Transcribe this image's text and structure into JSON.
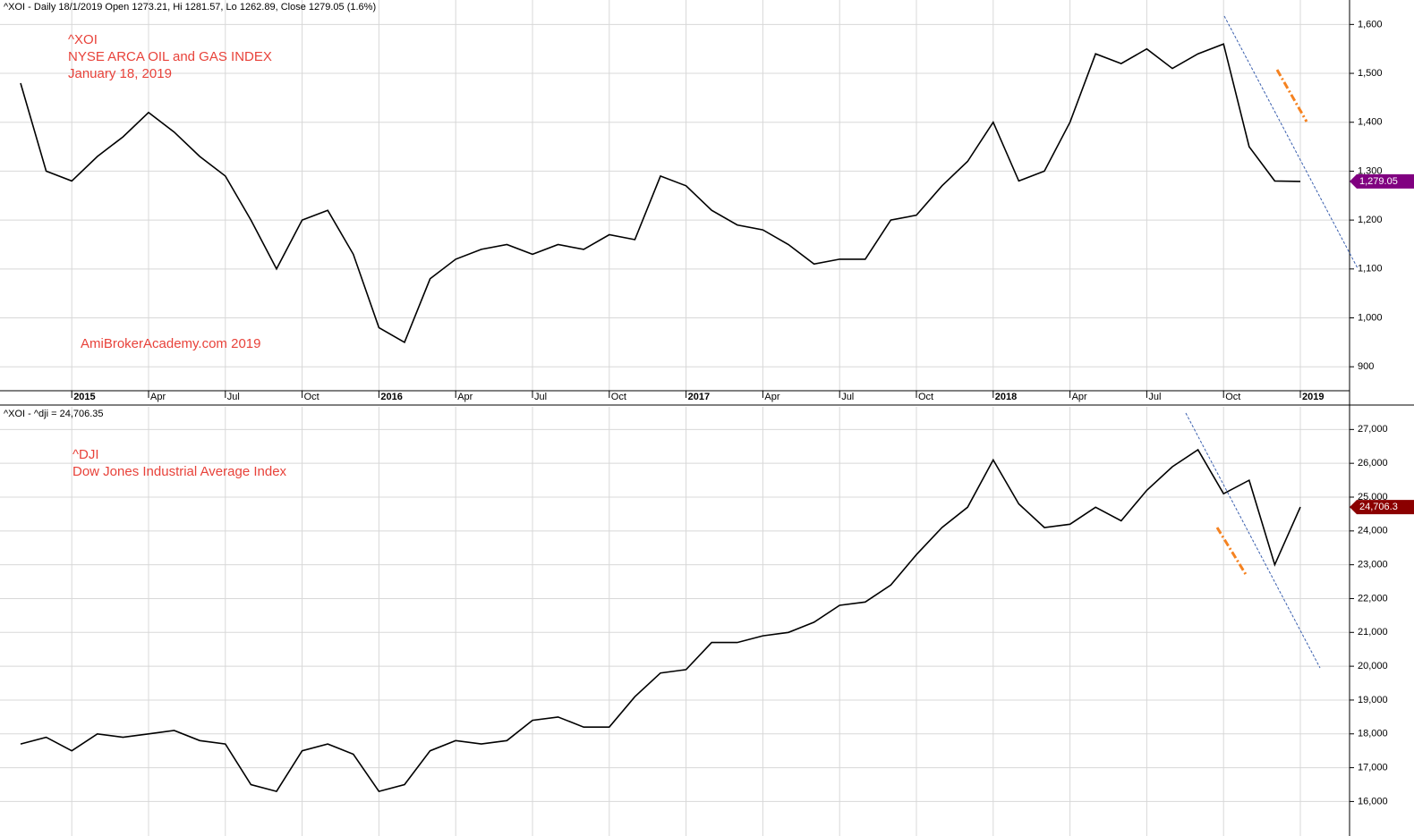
{
  "chart_data": [
    {
      "type": "line",
      "header": "^XOI - Daily 18/1/2019 Open 1273.21, Hi 1281.57, Lo 1262.89, Close 1279.05 (1.6%)",
      "title": "^XOI",
      "subtitle": "NYSE ARCA OIL and GAS INDEX",
      "date": "January 18, 2019",
      "watermark": "AmiBrokerAcademy.com  2019",
      "categories": [
        null,
        null,
        "2015",
        null,
        null,
        "Apr",
        null,
        null,
        "Jul",
        null,
        null,
        "Oct",
        null,
        null,
        "2016",
        null,
        null,
        "Apr",
        null,
        null,
        "Jul",
        null,
        null,
        "Oct",
        null,
        null,
        "2017",
        null,
        null,
        "Apr",
        null,
        null,
        "Jul",
        null,
        null,
        "Oct",
        null,
        null,
        "2018",
        null,
        null,
        "Apr",
        null,
        null,
        "Jul",
        null,
        null,
        "Oct",
        null,
        null,
        "2019"
      ],
      "values": [
        1480,
        1300,
        1280,
        1330,
        1370,
        1420,
        1380,
        1330,
        1290,
        1200,
        1100,
        1200,
        1220,
        1130,
        980,
        950,
        1080,
        1120,
        1140,
        1150,
        1130,
        1150,
        1140,
        1170,
        1160,
        1290,
        1270,
        1220,
        1190,
        1180,
        1150,
        1110,
        1120,
        1120,
        1200,
        1210,
        1270,
        1320,
        1400,
        1280,
        1300,
        1400,
        1540,
        1520,
        1550,
        1510,
        1540,
        1560,
        1350,
        1280,
        1279.05
      ],
      "color": "#000000",
      "last_label": {
        "value": 1279.05,
        "label": "1,279.05"
      },
      "tag_color": "#800080",
      "ylim": [
        851,
        1650
      ],
      "yticks": [
        900,
        {
          "value": 1000,
          "label": "1,000"
        },
        {
          "value": 1100,
          "label": "1,100"
        },
        {
          "value": 1200,
          "label": "1,200"
        },
        {
          "value": 1300,
          "label": "1,300"
        },
        {
          "value": 1400,
          "label": "1,400"
        },
        {
          "value": 1500,
          "label": "1,500"
        },
        {
          "value": 1600,
          "label": "1,600"
        }
      ],
      "grid": true
    },
    {
      "type": "line",
      "header": "^XOI - ^dji = 24,706.35",
      "title": "^DJI",
      "subtitle": "Dow Jones Industrial Average Index",
      "values": [
        17700,
        17900,
        17500,
        18000,
        17900,
        18000,
        18100,
        17800,
        17700,
        16500,
        16300,
        17500,
        17700,
        17400,
        16300,
        16500,
        17500,
        17800,
        17700,
        17800,
        18400,
        18500,
        18200,
        18200,
        19100,
        19800,
        19900,
        20700,
        20700,
        20900,
        21000,
        21300,
        21800,
        21900,
        22400,
        23300,
        24100,
        24700,
        26100,
        24800,
        24100,
        24200,
        24700,
        24300,
        25200,
        25900,
        26400,
        25100,
        25500,
        23000,
        24706.35
      ],
      "color": "#000000",
      "last_label": {
        "value": 24706.35,
        "label": "24,706.3"
      },
      "tag_color": "#8b0000",
      "ylim": [
        14980,
        27670
      ],
      "yticks": [
        {
          "value": 16000,
          "label": "16,000"
        },
        {
          "value": 17000,
          "label": "17,000"
        },
        {
          "value": 18000,
          "label": "18,000"
        },
        {
          "value": 19000,
          "label": "19,000"
        },
        {
          "value": 20000,
          "label": "20,000"
        },
        {
          "value": 21000,
          "label": "21,000"
        },
        {
          "value": 22000,
          "label": "22,000"
        },
        {
          "value": 23000,
          "label": "23,000"
        },
        {
          "value": 24000,
          "label": "24,000"
        },
        {
          "value": 25000,
          "label": "25,000"
        },
        {
          "value": 26000,
          "label": "26,000"
        },
        {
          "value": 27000,
          "label": "27,000"
        }
      ],
      "grid": true
    }
  ]
}
